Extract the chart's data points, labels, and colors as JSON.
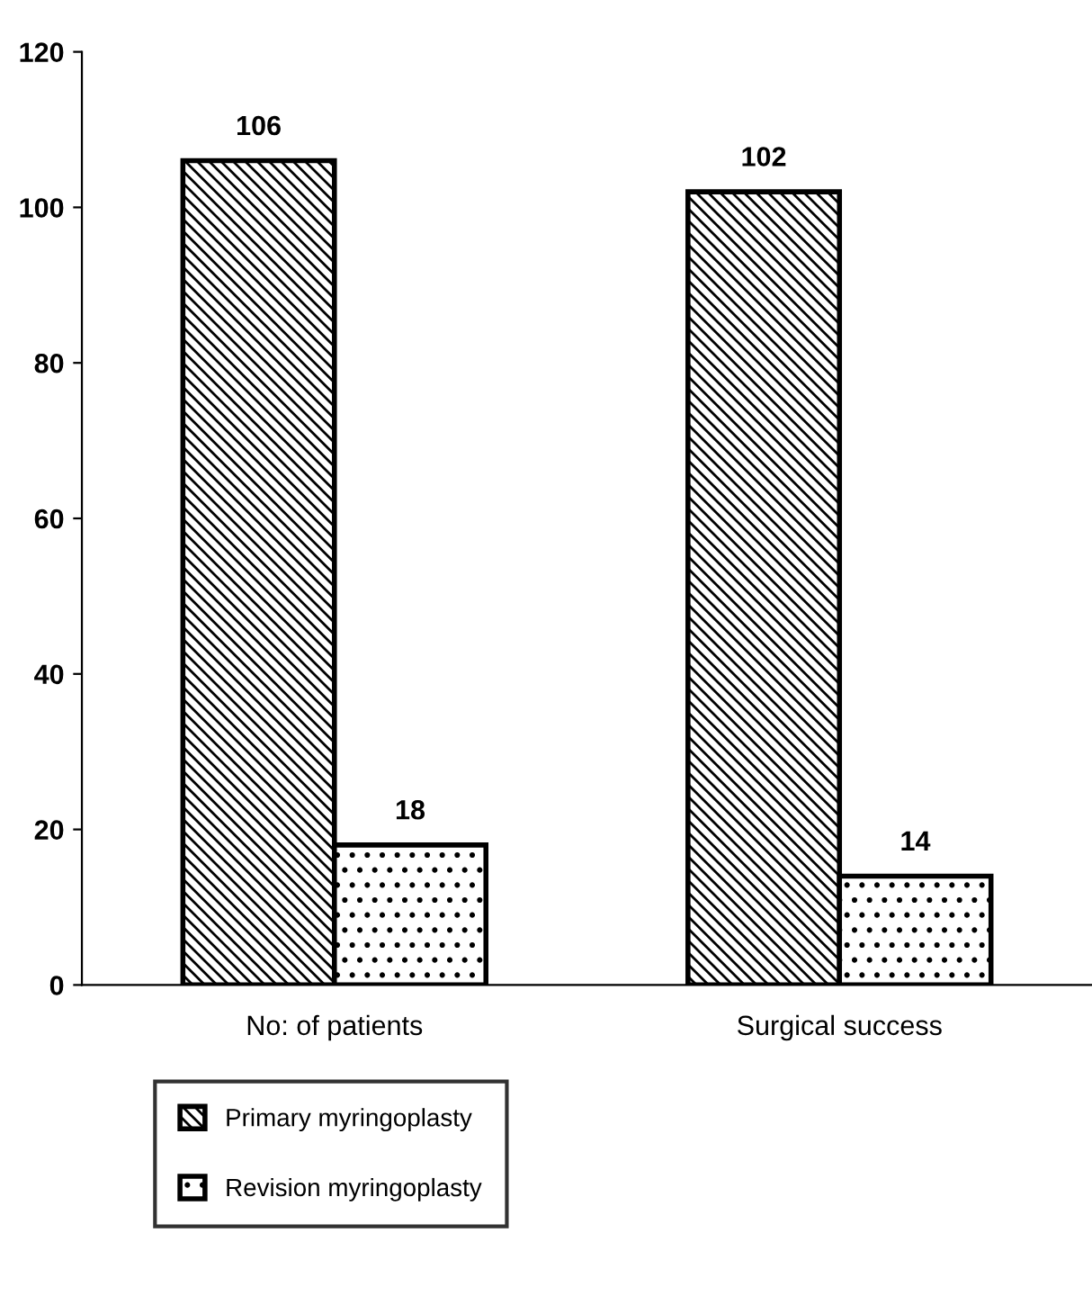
{
  "chart_data": {
    "type": "bar",
    "categories": [
      "No: of patients",
      "Surgical success"
    ],
    "series": [
      {
        "name": "Primary myringoplasty",
        "color": "#000000",
        "values": [
          106,
          102
        ]
      },
      {
        "name": "Revision myringoplasty",
        "color": "#000000",
        "values": [
          18,
          14
        ]
      }
    ],
    "ylim": [
      0,
      120
    ],
    "yticks": [
      0,
      20,
      40,
      60,
      80,
      100,
      120
    ],
    "data_labels": true,
    "grid": false,
    "legend": "bottom left"
  }
}
